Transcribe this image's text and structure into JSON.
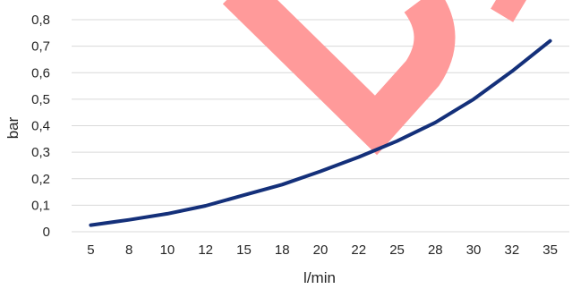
{
  "chart_data": {
    "type": "line",
    "categories": [
      "5",
      "8",
      "10",
      "12",
      "15",
      "18",
      "20",
      "22",
      "25",
      "28",
      "30",
      "32",
      "35"
    ],
    "series": [
      {
        "values": [
          0.025,
          0.045,
          0.068,
          0.098,
          0.138,
          0.178,
          0.228,
          0.282,
          0.342,
          0.412,
          0.5,
          0.605,
          0.72
        ],
        "color": "#14307a"
      }
    ],
    "xlabel": "l/min",
    "ylabel": "bar",
    "ylim": [
      0,
      0.8
    ],
    "yticks": [
      "0",
      "0,1",
      "0,2",
      "0,3",
      "0,4",
      "0,5",
      "0,6",
      "0,7",
      "0,8"
    ],
    "grid": true,
    "legend": "none"
  },
  "watermark": {
    "text": "D",
    "color": "#ff9a9a"
  }
}
